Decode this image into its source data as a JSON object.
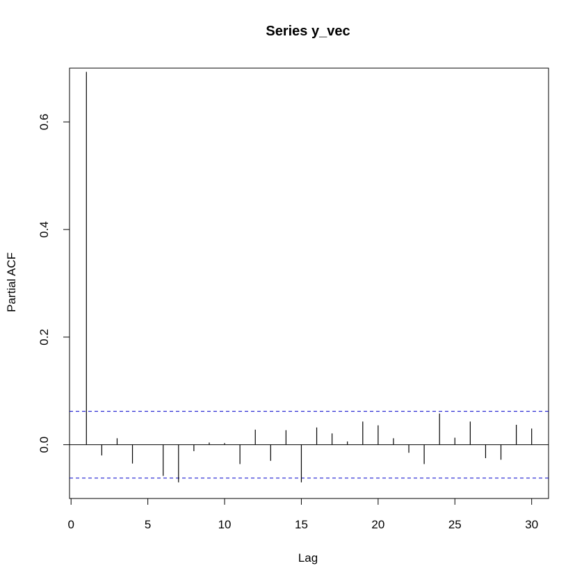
{
  "chart_data": {
    "type": "bar",
    "title": "Series  y_vec",
    "xlabel": "Lag",
    "ylabel": "Partial ACF",
    "xlim": [
      -0.1,
      31.1
    ],
    "ylim": [
      -0.1,
      0.7
    ],
    "x_ticks": [
      0,
      5,
      10,
      15,
      20,
      25,
      30
    ],
    "y_ticks": [
      0.0,
      0.2,
      0.4,
      0.6
    ],
    "x_tick_labels": [
      "0",
      "5",
      "10",
      "15",
      "20",
      "25",
      "30"
    ],
    "y_tick_labels": [
      "0.0",
      "0.2",
      "0.4",
      "0.6"
    ],
    "confidence_bounds": [
      0.062,
      -0.062
    ],
    "confidence_color": "#0000cc",
    "zero_line": true,
    "grid": false,
    "lags": [
      1,
      2,
      3,
      4,
      5,
      6,
      7,
      8,
      9,
      10,
      11,
      12,
      13,
      14,
      15,
      16,
      17,
      18,
      19,
      20,
      21,
      22,
      23,
      24,
      25,
      26,
      27,
      28,
      29,
      30
    ],
    "values": [
      0.693,
      -0.02,
      0.012,
      -0.035,
      0.0,
      -0.058,
      -0.07,
      -0.012,
      0.004,
      0.003,
      -0.036,
      0.028,
      -0.03,
      0.027,
      -0.07,
      0.032,
      0.021,
      0.006,
      0.043,
      0.036,
      0.012,
      -0.015,
      -0.036,
      0.058,
      0.013,
      0.043,
      -0.025,
      -0.028,
      0.037,
      0.03
    ]
  }
}
